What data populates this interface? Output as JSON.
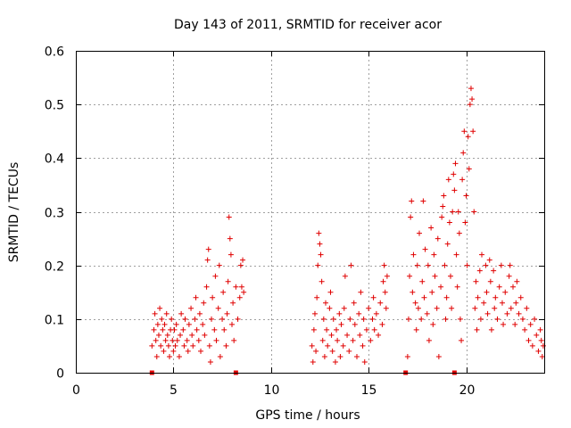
{
  "chart_data": {
    "type": "scatter",
    "title": "Day 143 of 2011, SRMTID for receiver acor",
    "xlabel": "GPS time / hours",
    "ylabel": "SRMTID / TECUs",
    "xlim": [
      0,
      24
    ],
    "ylim": [
      0,
      0.6
    ],
    "xticks": [
      0,
      5,
      10,
      15,
      20
    ],
    "yticks": [
      0,
      0.1,
      0.2,
      0.3,
      0.4,
      0.5,
      0.6
    ],
    "ytick_labels": [
      "0",
      "0.1",
      "0.2",
      "0.3",
      "0.4",
      "0.5",
      "0.6"
    ],
    "grid": true,
    "legend": "none",
    "color": "#e00000",
    "marker": "plus",
    "series": [
      {
        "name": "SRMTID",
        "points": [
          [
            3.9,
            0.05
          ],
          [
            4.0,
            0.08
          ],
          [
            4.05,
            0.11
          ],
          [
            4.1,
            0.06
          ],
          [
            4.15,
            0.03
          ],
          [
            4.2,
            0.09
          ],
          [
            4.25,
            0.07
          ],
          [
            4.3,
            0.12
          ],
          [
            4.35,
            0.05
          ],
          [
            4.4,
            0.1
          ],
          [
            4.45,
            0.08
          ],
          [
            4.5,
            0.04
          ],
          [
            4.55,
            0.09
          ],
          [
            4.6,
            0.06
          ],
          [
            4.65,
            0.11
          ],
          [
            4.7,
            0.07
          ],
          [
            4.75,
            0.05
          ],
          [
            4.8,
            0.03
          ],
          [
            4.85,
            0.08
          ],
          [
            4.9,
            0.1
          ],
          [
            4.95,
            0.06
          ],
          [
            5.0,
            0.04
          ],
          [
            5.05,
            0.08
          ],
          [
            5.1,
            0.05
          ],
          [
            5.15,
            0.09
          ],
          [
            5.2,
            0.06
          ],
          [
            5.3,
            0.03
          ],
          [
            5.35,
            0.07
          ],
          [
            5.4,
            0.11
          ],
          [
            5.5,
            0.08
          ],
          [
            5.55,
            0.05
          ],
          [
            5.6,
            0.1
          ],
          [
            5.7,
            0.06
          ],
          [
            5.75,
            0.04
          ],
          [
            5.8,
            0.09
          ],
          [
            5.9,
            0.12
          ],
          [
            5.95,
            0.07
          ],
          [
            6.0,
            0.05
          ],
          [
            6.1,
            0.1
          ],
          [
            6.15,
            0.14
          ],
          [
            6.2,
            0.08
          ],
          [
            6.3,
            0.06
          ],
          [
            6.35,
            0.11
          ],
          [
            6.4,
            0.04
          ],
          [
            6.5,
            0.09
          ],
          [
            6.55,
            0.13
          ],
          [
            6.6,
            0.07
          ],
          [
            6.7,
            0.16
          ],
          [
            6.75,
            0.21
          ],
          [
            6.8,
            0.23
          ],
          [
            6.85,
            0.05
          ],
          [
            6.9,
            0.02
          ],
          [
            6.95,
            0.1
          ],
          [
            7.0,
            0.14
          ],
          [
            7.1,
            0.08
          ],
          [
            7.15,
            0.18
          ],
          [
            7.2,
            0.06
          ],
          [
            7.3,
            0.12
          ],
          [
            7.35,
            0.2
          ],
          [
            7.4,
            0.03
          ],
          [
            7.5,
            0.1
          ],
          [
            7.55,
            0.15
          ],
          [
            7.6,
            0.08
          ],
          [
            7.7,
            0.05
          ],
          [
            7.75,
            0.11
          ],
          [
            7.8,
            0.17
          ],
          [
            7.85,
            0.29
          ],
          [
            7.9,
            0.25
          ],
          [
            7.95,
            0.22
          ],
          [
            8.0,
            0.09
          ],
          [
            8.05,
            0.13
          ],
          [
            8.1,
            0.06
          ],
          [
            8.2,
            0.16
          ],
          [
            8.3,
            0.1
          ],
          [
            8.4,
            0.14
          ],
          [
            8.45,
            0.2
          ],
          [
            8.5,
            0.16
          ],
          [
            8.55,
            0.21
          ],
          [
            8.6,
            0.15
          ],
          [
            12.1,
            0.05
          ],
          [
            12.15,
            0.02
          ],
          [
            12.2,
            0.08
          ],
          [
            12.25,
            0.11
          ],
          [
            12.3,
            0.04
          ],
          [
            12.35,
            0.14
          ],
          [
            12.4,
            0.2
          ],
          [
            12.45,
            0.26
          ],
          [
            12.5,
            0.24
          ],
          [
            12.55,
            0.22
          ],
          [
            12.6,
            0.17
          ],
          [
            12.65,
            0.06
          ],
          [
            12.7,
            0.1
          ],
          [
            12.75,
            0.03
          ],
          [
            12.8,
            0.13
          ],
          [
            12.85,
            0.08
          ],
          [
            12.9,
            0.05
          ],
          [
            13.0,
            0.12
          ],
          [
            13.05,
            0.15
          ],
          [
            13.1,
            0.07
          ],
          [
            13.15,
            0.04
          ],
          [
            13.2,
            0.1
          ],
          [
            13.3,
            0.02
          ],
          [
            13.35,
            0.08
          ],
          [
            13.4,
            0.06
          ],
          [
            13.5,
            0.11
          ],
          [
            13.55,
            0.03
          ],
          [
            13.6,
            0.09
          ],
          [
            13.7,
            0.05
          ],
          [
            13.75,
            0.12
          ],
          [
            13.8,
            0.18
          ],
          [
            13.9,
            0.07
          ],
          [
            14.0,
            0.04
          ],
          [
            14.05,
            0.1
          ],
          [
            14.1,
            0.2
          ],
          [
            14.2,
            0.06
          ],
          [
            14.25,
            0.13
          ],
          [
            14.3,
            0.09
          ],
          [
            14.4,
            0.03
          ],
          [
            14.5,
            0.11
          ],
          [
            14.55,
            0.07
          ],
          [
            14.6,
            0.15
          ],
          [
            14.7,
            0.05
          ],
          [
            14.75,
            0.1
          ],
          [
            14.8,
            0.02
          ],
          [
            14.9,
            0.08
          ],
          [
            15.0,
            0.12
          ],
          [
            15.1,
            0.06
          ],
          [
            15.2,
            0.1
          ],
          [
            15.25,
            0.14
          ],
          [
            15.3,
            0.08
          ],
          [
            15.4,
            0.11
          ],
          [
            15.5,
            0.07
          ],
          [
            15.6,
            0.13
          ],
          [
            15.7,
            0.09
          ],
          [
            15.75,
            0.17
          ],
          [
            15.8,
            0.2
          ],
          [
            15.85,
            0.15
          ],
          [
            15.9,
            0.12
          ],
          [
            15.95,
            0.18
          ],
          [
            17.0,
            0.03
          ],
          [
            17.05,
            0.1
          ],
          [
            17.1,
            0.18
          ],
          [
            17.15,
            0.29
          ],
          [
            17.2,
            0.32
          ],
          [
            17.25,
            0.15
          ],
          [
            17.3,
            0.22
          ],
          [
            17.4,
            0.13
          ],
          [
            17.45,
            0.08
          ],
          [
            17.5,
            0.2
          ],
          [
            17.55,
            0.12
          ],
          [
            17.6,
            0.26
          ],
          [
            17.7,
            0.1
          ],
          [
            17.75,
            0.17
          ],
          [
            17.8,
            0.32
          ],
          [
            17.85,
            0.14
          ],
          [
            17.9,
            0.23
          ],
          [
            18.0,
            0.11
          ],
          [
            18.05,
            0.2
          ],
          [
            18.1,
            0.06
          ],
          [
            18.2,
            0.27
          ],
          [
            18.25,
            0.15
          ],
          [
            18.3,
            0.09
          ],
          [
            18.35,
            0.22
          ],
          [
            18.4,
            0.18
          ],
          [
            18.5,
            0.12
          ],
          [
            18.55,
            0.25
          ],
          [
            18.6,
            0.03
          ],
          [
            18.7,
            0.16
          ],
          [
            18.75,
            0.29
          ],
          [
            18.8,
            0.31
          ],
          [
            18.85,
            0.33
          ],
          [
            18.9,
            0.2
          ],
          [
            18.95,
            0.1
          ],
          [
            19.0,
            0.14
          ],
          [
            19.05,
            0.24
          ],
          [
            19.1,
            0.36
          ],
          [
            19.15,
            0.28
          ],
          [
            19.2,
            0.18
          ],
          [
            19.25,
            0.12
          ],
          [
            19.3,
            0.3
          ],
          [
            19.35,
            0.37
          ],
          [
            19.4,
            0.34
          ],
          [
            19.45,
            0.39
          ],
          [
            19.5,
            0.22
          ],
          [
            19.55,
            0.16
          ],
          [
            19.6,
            0.3
          ],
          [
            19.65,
            0.26
          ],
          [
            19.7,
            0.1
          ],
          [
            19.75,
            0.06
          ],
          [
            19.8,
            0.36
          ],
          [
            19.85,
            0.41
          ],
          [
            19.9,
            0.45
          ],
          [
            19.95,
            0.28
          ],
          [
            20.0,
            0.33
          ],
          [
            20.05,
            0.2
          ],
          [
            20.1,
            0.44
          ],
          [
            20.15,
            0.38
          ],
          [
            20.2,
            0.5
          ],
          [
            20.25,
            0.53
          ],
          [
            20.3,
            0.51
          ],
          [
            20.35,
            0.45
          ],
          [
            20.4,
            0.3
          ],
          [
            20.45,
            0.12
          ],
          [
            20.5,
            0.17
          ],
          [
            20.55,
            0.08
          ],
          [
            20.6,
            0.14
          ],
          [
            20.7,
            0.19
          ],
          [
            20.75,
            0.1
          ],
          [
            20.8,
            0.22
          ],
          [
            20.9,
            0.13
          ],
          [
            21.0,
            0.2
          ],
          [
            21.05,
            0.15
          ],
          [
            21.1,
            0.11
          ],
          [
            21.2,
            0.21
          ],
          [
            21.25,
            0.17
          ],
          [
            21.3,
            0.08
          ],
          [
            21.4,
            0.19
          ],
          [
            21.45,
            0.12
          ],
          [
            21.5,
            0.14
          ],
          [
            21.6,
            0.1
          ],
          [
            21.7,
            0.16
          ],
          [
            21.8,
            0.2
          ],
          [
            21.85,
            0.13
          ],
          [
            21.9,
            0.09
          ],
          [
            22.0,
            0.15
          ],
          [
            22.1,
            0.11
          ],
          [
            22.2,
            0.18
          ],
          [
            22.25,
            0.2
          ],
          [
            22.3,
            0.12
          ],
          [
            22.4,
            0.16
          ],
          [
            22.5,
            0.09
          ],
          [
            22.55,
            0.13
          ],
          [
            22.6,
            0.17
          ],
          [
            22.7,
            0.11
          ],
          [
            22.8,
            0.14
          ],
          [
            22.9,
            0.1
          ],
          [
            23.0,
            0.08
          ],
          [
            23.1,
            0.12
          ],
          [
            23.2,
            0.06
          ],
          [
            23.3,
            0.09
          ],
          [
            23.4,
            0.05
          ],
          [
            23.5,
            0.1
          ],
          [
            23.6,
            0.07
          ],
          [
            23.7,
            0.04
          ],
          [
            23.8,
            0.08
          ],
          [
            23.85,
            0.06
          ],
          [
            23.9,
            0.03
          ],
          [
            23.95,
            0.05
          ]
        ]
      }
    ],
    "baseline_markers": [
      3.9,
      8.2,
      16.9,
      19.4
    ]
  }
}
